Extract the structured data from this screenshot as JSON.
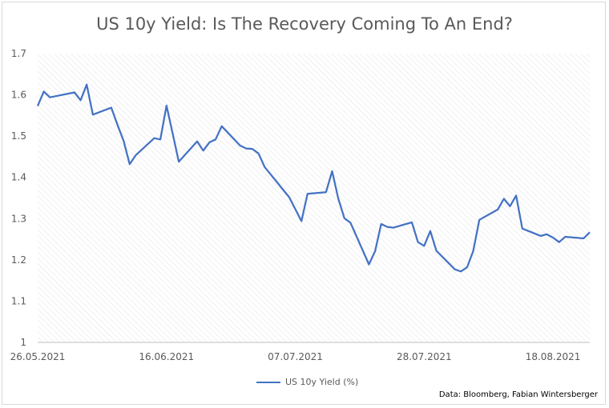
{
  "chart_data": {
    "type": "line",
    "title": "US 10y Yield: Is The Recovery Coming To An End?",
    "xlabel": "",
    "ylabel": "",
    "ylim": [
      1,
      1.7
    ],
    "yticks": [
      "1",
      "1.1",
      "1.2",
      "1.3",
      "1.4",
      "1.5",
      "1.6",
      "1.7"
    ],
    "xlim": [
      "2021-05-26",
      "2021-08-24"
    ],
    "xticks": [
      "26.05.2021",
      "16.06.2021",
      "07.07.2021",
      "28.07.2021",
      "18.08.2021"
    ],
    "grid": true,
    "legend": "bottom",
    "colors": {
      "series": "#4472c4"
    },
    "series": [
      {
        "name": "US 10y Yield (%)",
        "x": [
          "2021-05-26",
          "2021-05-27",
          "2021-05-28",
          "2021-06-01",
          "2021-06-02",
          "2021-06-03",
          "2021-06-04",
          "2021-06-07",
          "2021-06-08",
          "2021-06-09",
          "2021-06-10",
          "2021-06-11",
          "2021-06-14",
          "2021-06-15",
          "2021-06-16",
          "2021-06-17",
          "2021-06-18",
          "2021-06-21",
          "2021-06-22",
          "2021-06-23",
          "2021-06-24",
          "2021-06-25",
          "2021-06-28",
          "2021-06-29",
          "2021-06-30",
          "2021-07-01",
          "2021-07-02",
          "2021-07-06",
          "2021-07-07",
          "2021-07-08",
          "2021-07-09",
          "2021-07-12",
          "2021-07-13",
          "2021-07-14",
          "2021-07-15",
          "2021-07-16",
          "2021-07-19",
          "2021-07-20",
          "2021-07-21",
          "2021-07-22",
          "2021-07-23",
          "2021-07-26",
          "2021-07-27",
          "2021-07-28",
          "2021-07-29",
          "2021-07-30",
          "2021-08-02",
          "2021-08-03",
          "2021-08-04",
          "2021-08-05",
          "2021-08-06",
          "2021-08-09",
          "2021-08-10",
          "2021-08-11",
          "2021-08-12",
          "2021-08-13",
          "2021-08-16",
          "2021-08-17",
          "2021-08-18",
          "2021-08-19",
          "2021-08-20",
          "2021-08-23",
          "2021-08-24"
        ],
        "values": [
          1.573,
          1.608,
          1.594,
          1.606,
          1.587,
          1.625,
          1.552,
          1.569,
          1.528,
          1.489,
          1.432,
          1.454,
          1.495,
          1.492,
          1.574,
          1.507,
          1.438,
          1.487,
          1.465,
          1.485,
          1.492,
          1.524,
          1.477,
          1.47,
          1.469,
          1.458,
          1.425,
          1.352,
          1.323,
          1.294,
          1.36,
          1.364,
          1.415,
          1.349,
          1.301,
          1.29,
          1.189,
          1.221,
          1.287,
          1.28,
          1.278,
          1.291,
          1.243,
          1.234,
          1.27,
          1.222,
          1.177,
          1.172,
          1.182,
          1.221,
          1.297,
          1.322,
          1.348,
          1.33,
          1.356,
          1.276,
          1.258,
          1.262,
          1.254,
          1.243,
          1.256,
          1.252,
          1.267
        ]
      }
    ]
  },
  "legend": {
    "label": "US 10y Yield (%)"
  },
  "source": "Data: Bloomberg, Fabian Wintersberger"
}
